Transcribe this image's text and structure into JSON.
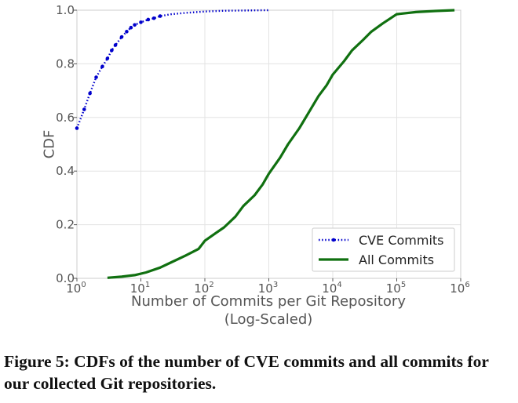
{
  "chart_data": {
    "type": "line",
    "xlabel": "Number of Commits per Git Repository",
    "xlabel_sub": "(Log-Scaled)",
    "ylabel": "CDF",
    "x_scale": "log",
    "xlim": [
      1,
      1000000
    ],
    "ylim": [
      0.0,
      1.0
    ],
    "x_tick_base": "10",
    "x_ticks": [
      {
        "value": 1,
        "exp": "0"
      },
      {
        "value": 10,
        "exp": "1"
      },
      {
        "value": 100,
        "exp": "2"
      },
      {
        "value": 1000,
        "exp": "3"
      },
      {
        "value": 10000,
        "exp": "4"
      },
      {
        "value": 100000,
        "exp": "5"
      },
      {
        "value": 1000000,
        "exp": "6"
      }
    ],
    "y_ticks": [
      "0.0",
      "0.2",
      "0.4",
      "0.6",
      "0.8",
      "1.0"
    ],
    "grid": true,
    "legend_position": "bottom-right",
    "series": [
      {
        "name": "CVE Commits",
        "color": "#0000cc",
        "style": "dotted",
        "points": [
          [
            1,
            0.56
          ],
          [
            1.3,
            0.63
          ],
          [
            1.6,
            0.69
          ],
          [
            2,
            0.75
          ],
          [
            2.5,
            0.79
          ],
          [
            3,
            0.82
          ],
          [
            3.5,
            0.85
          ],
          [
            4,
            0.87
          ],
          [
            5,
            0.9
          ],
          [
            6,
            0.92
          ],
          [
            7,
            0.935
          ],
          [
            8,
            0.945
          ],
          [
            10,
            0.955
          ],
          [
            13,
            0.965
          ],
          [
            16,
            0.97
          ],
          [
            20,
            0.978
          ],
          [
            30,
            0.985
          ],
          [
            50,
            0.99
          ],
          [
            100,
            0.995
          ],
          [
            200,
            0.998
          ],
          [
            1000,
            1.0
          ]
        ]
      },
      {
        "name": "All Commits",
        "color": "#107010",
        "style": "solid",
        "points": [
          [
            3,
            0.002
          ],
          [
            5,
            0.006
          ],
          [
            8,
            0.012
          ],
          [
            12,
            0.022
          ],
          [
            20,
            0.04
          ],
          [
            30,
            0.06
          ],
          [
            50,
            0.085
          ],
          [
            80,
            0.11
          ],
          [
            100,
            0.14
          ],
          [
            150,
            0.17
          ],
          [
            200,
            0.19
          ],
          [
            300,
            0.23
          ],
          [
            400,
            0.27
          ],
          [
            600,
            0.31
          ],
          [
            800,
            0.35
          ],
          [
            1000,
            0.39
          ],
          [
            1500,
            0.45
          ],
          [
            2000,
            0.5
          ],
          [
            3000,
            0.56
          ],
          [
            4000,
            0.61
          ],
          [
            6000,
            0.68
          ],
          [
            8000,
            0.72
          ],
          [
            10000,
            0.76
          ],
          [
            15000,
            0.81
          ],
          [
            20000,
            0.85
          ],
          [
            30000,
            0.89
          ],
          [
            40000,
            0.92
          ],
          [
            60000,
            0.95
          ],
          [
            80000,
            0.97
          ],
          [
            100000,
            0.985
          ],
          [
            200000,
            0.993
          ],
          [
            400000,
            0.997
          ],
          [
            800000,
            1.0
          ]
        ]
      }
    ]
  },
  "caption": "Figure 5: CDFs of the number of CVE commits and all commits for our collected Git repositories."
}
